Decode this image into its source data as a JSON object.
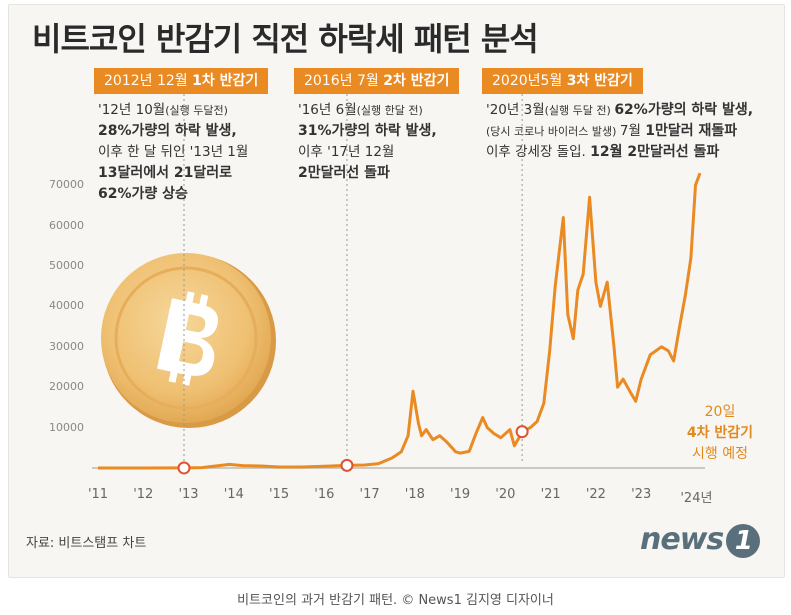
{
  "title": "비트코인 반감기 직전 하락세 패턴 분석",
  "halvings": [
    {
      "tag_normal": "2012년 12월 ",
      "tag_bold": "1차 반감기",
      "lines": [
        [
          {
            "t": "'12년 10월",
            "c": ""
          },
          {
            "t": "(실행 두달전)",
            "c": "sm"
          }
        ],
        [
          {
            "t": "28%가량의 하락 발생,",
            "c": "bd"
          }
        ],
        [
          {
            "t": "이후 한 달 뒤인 '13년 1월",
            "c": ""
          }
        ],
        [
          {
            "t": "13달러에서 21달러로",
            "c": "bd"
          }
        ],
        [
          {
            "t": "62%가량 상승",
            "c": "bd"
          }
        ]
      ]
    },
    {
      "tag_normal": "2016년 7월 ",
      "tag_bold": "2차 반감기",
      "lines": [
        [
          {
            "t": "'16년 6월",
            "c": ""
          },
          {
            "t": "(실행 한달 전)",
            "c": "sm"
          }
        ],
        [
          {
            "t": "31%가량의 하락 발생,",
            "c": "bd"
          }
        ],
        [
          {
            "t": "이후 '17년 12월",
            "c": ""
          }
        ],
        [
          {
            "t": "2만달러선 돌파",
            "c": "bd"
          }
        ]
      ]
    },
    {
      "tag_normal": "2020년5월 ",
      "tag_bold": "3차 반감기",
      "lines": [
        [
          {
            "t": "'20년 3월",
            "c": ""
          },
          {
            "t": "(실행 두달 전) ",
            "c": "sm"
          },
          {
            "t": "62%가량의 하락 발생,",
            "c": "bd"
          }
        ],
        [
          {
            "t": "(당시 코로나 바이러스 발생) ",
            "c": "sm"
          },
          {
            "t": "7월 ",
            "c": ""
          },
          {
            "t": "1만달러 재돌파",
            "c": "bd"
          }
        ],
        [
          {
            "t": "이후 강세장 돌입. ",
            "c": ""
          },
          {
            "t": "12월 2만달러선 돌파",
            "c": "bd"
          }
        ]
      ]
    }
  ],
  "halving4": {
    "line1": "20일",
    "line2": "4차 반감기",
    "line3": "시행 예정"
  },
  "source": "자료: 비트스탬프 차트",
  "logo": {
    "word": "news",
    "num": "1"
  },
  "caption": "비트코인의 과거 반감기 패턴. © News1 김지영 디자이너",
  "colors": {
    "accent": "#ea8a22",
    "line": "#ea8a22",
    "background": "#f7f6f3"
  },
  "icons": {
    "coin": "bitcoin-coin-icon"
  },
  "chart_data": {
    "type": "line",
    "title": "비트코인 반감기 직전 하락세 패턴 분석",
    "xlabel": "",
    "ylabel": "",
    "x_ticks": [
      "'11",
      "'12",
      "'13",
      "'14",
      "'15",
      "'16",
      "'17",
      "'18",
      "'19",
      "'20",
      "'21",
      "'22",
      "'23",
      "'24년"
    ],
    "y_ticks": [
      10000,
      20000,
      30000,
      40000,
      50000,
      60000,
      70000
    ],
    "ylim": [
      0,
      75000
    ],
    "xlim": [
      2011.0,
      2024.3
    ],
    "grid": false,
    "series": [
      {
        "points": [
          [
            2011.0,
            1
          ],
          [
            2012.0,
            5
          ],
          [
            2012.9,
            13
          ],
          [
            2013.3,
            100
          ],
          [
            2013.9,
            900
          ],
          [
            2014.2,
            600
          ],
          [
            2014.6,
            500
          ],
          [
            2015.0,
            250
          ],
          [
            2015.5,
            250
          ],
          [
            2016.0,
            430
          ],
          [
            2016.5,
            650
          ],
          [
            2016.9,
            750
          ],
          [
            2017.2,
            1100
          ],
          [
            2017.5,
            2500
          ],
          [
            2017.7,
            4000
          ],
          [
            2017.85,
            8000
          ],
          [
            2017.96,
            19000
          ],
          [
            2018.08,
            11000
          ],
          [
            2018.15,
            8000
          ],
          [
            2018.25,
            9500
          ],
          [
            2018.4,
            7000
          ],
          [
            2018.55,
            8000
          ],
          [
            2018.7,
            6500
          ],
          [
            2018.9,
            4000
          ],
          [
            2019.0,
            3700
          ],
          [
            2019.2,
            4100
          ],
          [
            2019.35,
            8500
          ],
          [
            2019.5,
            12500
          ],
          [
            2019.6,
            10000
          ],
          [
            2019.75,
            8500
          ],
          [
            2019.9,
            7500
          ],
          [
            2020.1,
            9500
          ],
          [
            2020.2,
            5500
          ],
          [
            2020.38,
            9000
          ],
          [
            2020.55,
            10000
          ],
          [
            2020.7,
            11500
          ],
          [
            2020.85,
            16000
          ],
          [
            2020.98,
            29000
          ],
          [
            2021.1,
            45000
          ],
          [
            2021.28,
            62000
          ],
          [
            2021.38,
            38000
          ],
          [
            2021.5,
            32000
          ],
          [
            2021.6,
            44000
          ],
          [
            2021.72,
            48000
          ],
          [
            2021.86,
            67000
          ],
          [
            2022.0,
            46000
          ],
          [
            2022.1,
            40000
          ],
          [
            2022.25,
            46000
          ],
          [
            2022.4,
            30000
          ],
          [
            2022.48,
            20000
          ],
          [
            2022.6,
            22000
          ],
          [
            2022.75,
            19000
          ],
          [
            2022.88,
            16500
          ],
          [
            2023.0,
            22000
          ],
          [
            2023.2,
            28000
          ],
          [
            2023.45,
            30000
          ],
          [
            2023.6,
            29000
          ],
          [
            2023.72,
            26500
          ],
          [
            2023.85,
            35000
          ],
          [
            2023.98,
            43000
          ],
          [
            2024.1,
            52000
          ],
          [
            2024.2,
            70000
          ],
          [
            2024.3,
            73000
          ]
        ]
      }
    ],
    "halving_markers": [
      2012.9,
      2016.5,
      2020.37
    ]
  }
}
